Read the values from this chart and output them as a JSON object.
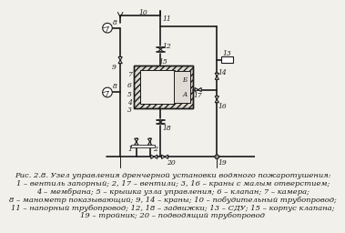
{
  "caption_line1": "Рис. 2.8. Узел управления дренчерной установки водяного пожаротушения:",
  "caption_line2": "1 – вентиль запорный; 2, 17 – вентили; 3, 16 – краны с малым отверстием;",
  "caption_line3": "4 – мембрана; 5 – крышка узла управления; 6 – клапан; 7 – камера;",
  "caption_line4": "8 – манометр показывающий; 9, 14 – краны; 10 – побудительный трубопровод;",
  "caption_line5": "11 – напорный трубопровод; 12, 18 – задвижки; 13 – СДУ; 15 – корпус клапана;",
  "caption_line6": "19 – тройник; 20 – подводящий трубопровод",
  "bg_color": "#f2f0eb",
  "line_color": "#1a1a1a"
}
